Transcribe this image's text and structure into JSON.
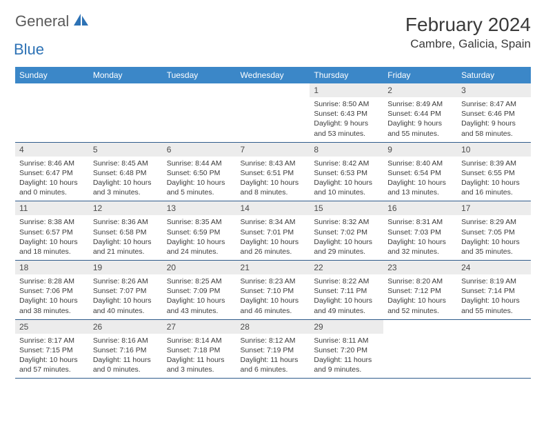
{
  "brand": {
    "part1": "General",
    "part2": "Blue"
  },
  "title": "February 2024",
  "location": "Cambre, Galicia, Spain",
  "weekday_header_bg": "#3b87c8",
  "weekdays": [
    "Sunday",
    "Monday",
    "Tuesday",
    "Wednesday",
    "Thursday",
    "Friday",
    "Saturday"
  ],
  "weeks": [
    [
      null,
      null,
      null,
      null,
      {
        "n": "1",
        "sr": "8:50 AM",
        "ss": "6:43 PM",
        "dl": "9 hours and 53 minutes."
      },
      {
        "n": "2",
        "sr": "8:49 AM",
        "ss": "6:44 PM",
        "dl": "9 hours and 55 minutes."
      },
      {
        "n": "3",
        "sr": "8:47 AM",
        "ss": "6:46 PM",
        "dl": "9 hours and 58 minutes."
      }
    ],
    [
      {
        "n": "4",
        "sr": "8:46 AM",
        "ss": "6:47 PM",
        "dl": "10 hours and 0 minutes."
      },
      {
        "n": "5",
        "sr": "8:45 AM",
        "ss": "6:48 PM",
        "dl": "10 hours and 3 minutes."
      },
      {
        "n": "6",
        "sr": "8:44 AM",
        "ss": "6:50 PM",
        "dl": "10 hours and 5 minutes."
      },
      {
        "n": "7",
        "sr": "8:43 AM",
        "ss": "6:51 PM",
        "dl": "10 hours and 8 minutes."
      },
      {
        "n": "8",
        "sr": "8:42 AM",
        "ss": "6:53 PM",
        "dl": "10 hours and 10 minutes."
      },
      {
        "n": "9",
        "sr": "8:40 AM",
        "ss": "6:54 PM",
        "dl": "10 hours and 13 minutes."
      },
      {
        "n": "10",
        "sr": "8:39 AM",
        "ss": "6:55 PM",
        "dl": "10 hours and 16 minutes."
      }
    ],
    [
      {
        "n": "11",
        "sr": "8:38 AM",
        "ss": "6:57 PM",
        "dl": "10 hours and 18 minutes."
      },
      {
        "n": "12",
        "sr": "8:36 AM",
        "ss": "6:58 PM",
        "dl": "10 hours and 21 minutes."
      },
      {
        "n": "13",
        "sr": "8:35 AM",
        "ss": "6:59 PM",
        "dl": "10 hours and 24 minutes."
      },
      {
        "n": "14",
        "sr": "8:34 AM",
        "ss": "7:01 PM",
        "dl": "10 hours and 26 minutes."
      },
      {
        "n": "15",
        "sr": "8:32 AM",
        "ss": "7:02 PM",
        "dl": "10 hours and 29 minutes."
      },
      {
        "n": "16",
        "sr": "8:31 AM",
        "ss": "7:03 PM",
        "dl": "10 hours and 32 minutes."
      },
      {
        "n": "17",
        "sr": "8:29 AM",
        "ss": "7:05 PM",
        "dl": "10 hours and 35 minutes."
      }
    ],
    [
      {
        "n": "18",
        "sr": "8:28 AM",
        "ss": "7:06 PM",
        "dl": "10 hours and 38 minutes."
      },
      {
        "n": "19",
        "sr": "8:26 AM",
        "ss": "7:07 PM",
        "dl": "10 hours and 40 minutes."
      },
      {
        "n": "20",
        "sr": "8:25 AM",
        "ss": "7:09 PM",
        "dl": "10 hours and 43 minutes."
      },
      {
        "n": "21",
        "sr": "8:23 AM",
        "ss": "7:10 PM",
        "dl": "10 hours and 46 minutes."
      },
      {
        "n": "22",
        "sr": "8:22 AM",
        "ss": "7:11 PM",
        "dl": "10 hours and 49 minutes."
      },
      {
        "n": "23",
        "sr": "8:20 AM",
        "ss": "7:12 PM",
        "dl": "10 hours and 52 minutes."
      },
      {
        "n": "24",
        "sr": "8:19 AM",
        "ss": "7:14 PM",
        "dl": "10 hours and 55 minutes."
      }
    ],
    [
      {
        "n": "25",
        "sr": "8:17 AM",
        "ss": "7:15 PM",
        "dl": "10 hours and 57 minutes."
      },
      {
        "n": "26",
        "sr": "8:16 AM",
        "ss": "7:16 PM",
        "dl": "11 hours and 0 minutes."
      },
      {
        "n": "27",
        "sr": "8:14 AM",
        "ss": "7:18 PM",
        "dl": "11 hours and 3 minutes."
      },
      {
        "n": "28",
        "sr": "8:12 AM",
        "ss": "7:19 PM",
        "dl": "11 hours and 6 minutes."
      },
      {
        "n": "29",
        "sr": "8:11 AM",
        "ss": "7:20 PM",
        "dl": "11 hours and 9 minutes."
      },
      null,
      null
    ]
  ],
  "labels": {
    "sunrise": "Sunrise:",
    "sunset": "Sunset:",
    "daylight": "Daylight:"
  }
}
